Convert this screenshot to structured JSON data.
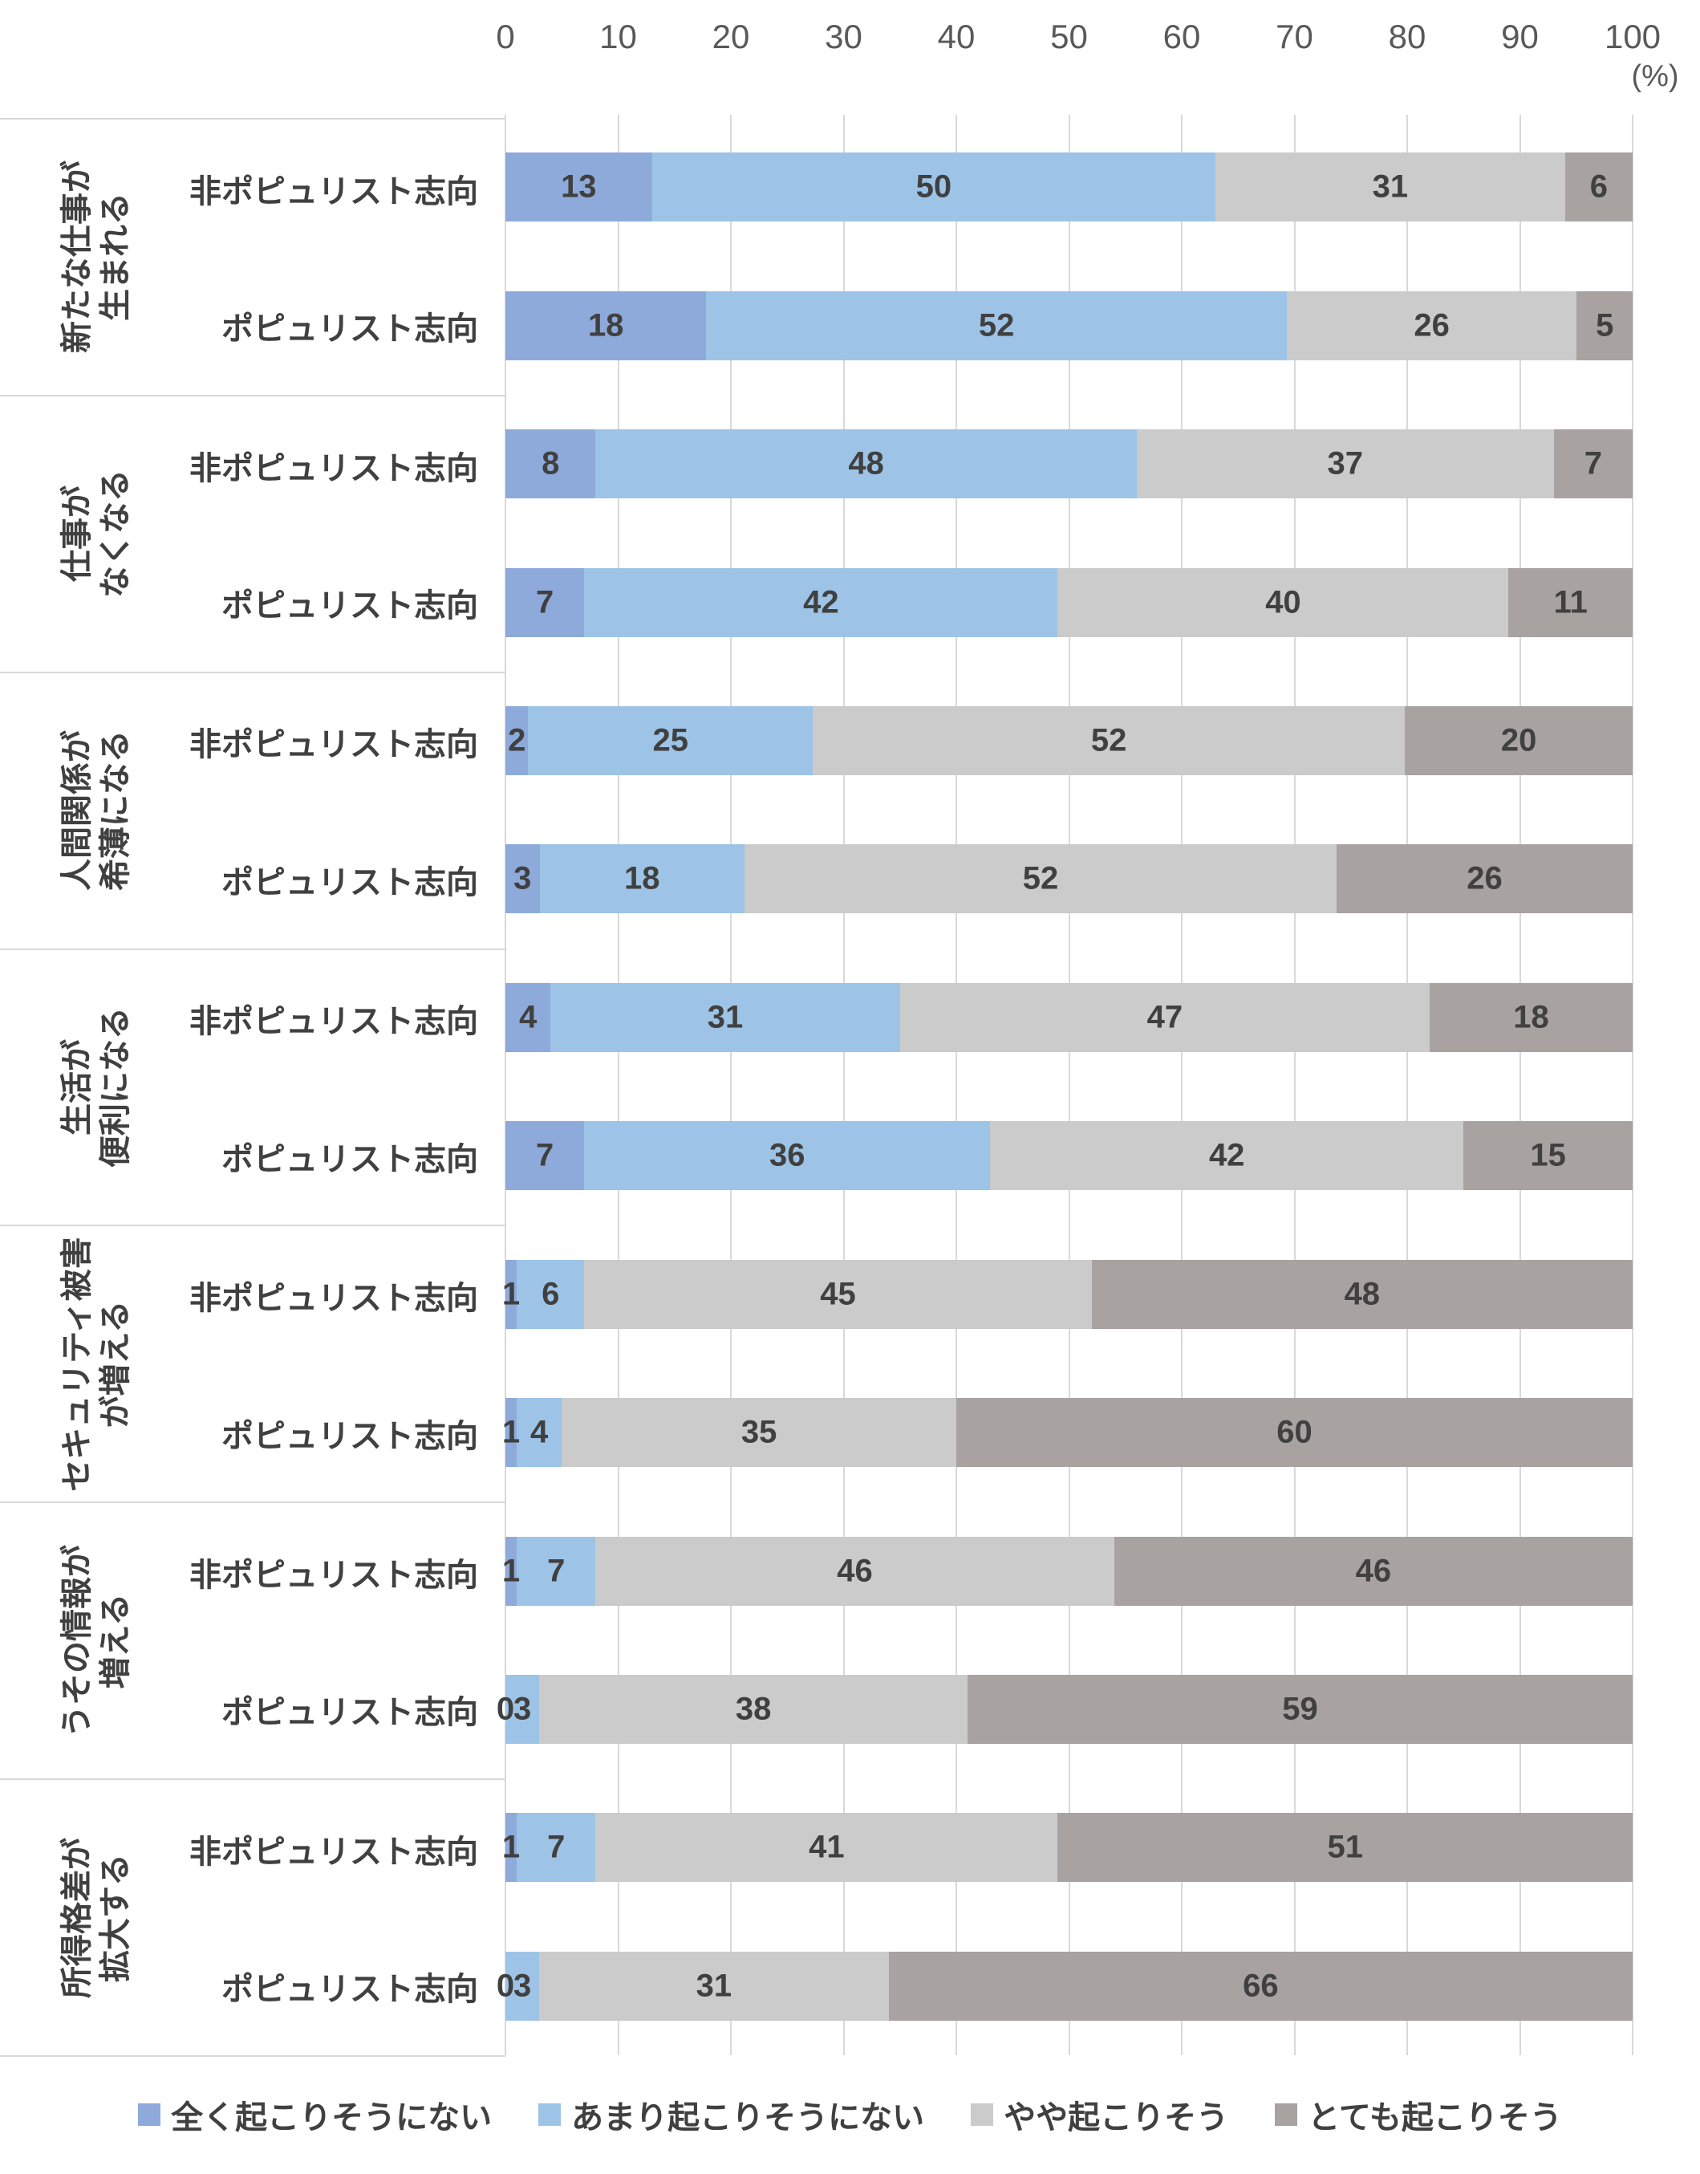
{
  "chart_data": {
    "type": "bar",
    "orientation": "horizontal-stacked",
    "title": "",
    "unit_label": "(%)",
    "axis": {
      "min": 0,
      "max": 100,
      "step": 10,
      "tick_labels": [
        "0",
        "10",
        "20",
        "30",
        "40",
        "50",
        "60",
        "70",
        "80",
        "90",
        "100"
      ],
      "grid": true
    },
    "legend_position": "bottom",
    "series": [
      {
        "name": "全く起こりそうにない",
        "color": "#8EAADB"
      },
      {
        "name": "あまり起こりそうにない",
        "color": "#9DC4E6"
      },
      {
        "name": "やや起こりそう",
        "color": "#CBCBCB"
      },
      {
        "name": "とても起こりそう",
        "color": "#A8A2A1"
      }
    ],
    "row_group_labels": [
      "非ポピュリスト志向",
      "ポピュリスト志向"
    ],
    "categories": [
      {
        "label": "新たな仕事が\n生まれる",
        "rows": [
          {
            "name": "非ポピュリスト志向",
            "values": [
              13,
              50,
              31,
              6
            ]
          },
          {
            "name": "ポピュリスト志向",
            "values": [
              18,
              52,
              26,
              5
            ]
          }
        ]
      },
      {
        "label": "仕事が\nなくなる",
        "rows": [
          {
            "name": "非ポピュリスト志向",
            "values": [
              8,
              48,
              37,
              7
            ]
          },
          {
            "name": "ポピュリスト志向",
            "values": [
              7,
              42,
              40,
              11
            ]
          }
        ]
      },
      {
        "label": "人間関係が\n希薄になる",
        "rows": [
          {
            "name": "非ポピュリスト志向",
            "values": [
              2,
              25,
              52,
              20
            ]
          },
          {
            "name": "ポピュリスト志向",
            "values": [
              3,
              18,
              52,
              26
            ]
          }
        ]
      },
      {
        "label": "生活が\n便利になる",
        "rows": [
          {
            "name": "非ポピュリスト志向",
            "values": [
              4,
              31,
              47,
              18
            ]
          },
          {
            "name": "ポピュリスト志向",
            "values": [
              7,
              36,
              42,
              15
            ]
          }
        ]
      },
      {
        "label": "セキュリティ被害\nが増える",
        "rows": [
          {
            "name": "非ポピュリスト志向",
            "values": [
              1,
              6,
              45,
              48
            ]
          },
          {
            "name": "ポピュリスト志向",
            "values": [
              1,
              4,
              35,
              60
            ]
          }
        ]
      },
      {
        "label": "うその情報が\n増える",
        "rows": [
          {
            "name": "非ポピュリスト志向",
            "values": [
              1,
              7,
              46,
              46
            ]
          },
          {
            "name": "ポピュリスト志向",
            "values": [
              0,
              3,
              38,
              59
            ]
          }
        ]
      },
      {
        "label": "所得格差が\n拡大する",
        "rows": [
          {
            "name": "非ポピュリスト志向",
            "values": [
              1,
              7,
              41,
              51
            ]
          },
          {
            "name": "ポピュリスト志向",
            "values": [
              0,
              3,
              31,
              66
            ]
          }
        ]
      }
    ]
  }
}
